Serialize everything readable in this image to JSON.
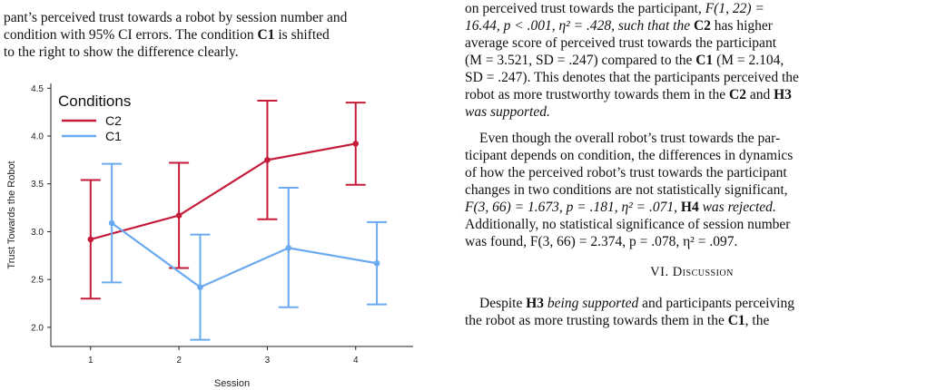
{
  "caption": {
    "lines": [
      "pant’s perceived trust towards a robot by session number and",
      "condition with 95% CI errors. The condition C1 is shifted",
      "to the right to show the difference clearly."
    ]
  },
  "chart_data": {
    "type": "line",
    "x": [
      1,
      2,
      3,
      4
    ],
    "tick_labels": [
      "1",
      "2",
      "3",
      "4"
    ],
    "xlabel": "Session",
    "ylabel": "Trust Towards the Robot",
    "ylim": [
      1.8,
      4.55
    ],
    "yticks": [
      "2.0",
      "2.5",
      "3.0",
      "3.5",
      "4.0",
      "4.5"
    ],
    "grid": false,
    "legend_title": "Conditions",
    "legend_position": "top-left",
    "series": [
      {
        "name": "C2",
        "color": "#c51b3a",
        "values": [
          2.92,
          3.17,
          3.75,
          3.92
        ],
        "ci_low": [
          2.3,
          2.62,
          3.13,
          3.49
        ],
        "ci_high": [
          3.54,
          3.72,
          4.37,
          4.35
        ],
        "x_offset": 0
      },
      {
        "name": "C1",
        "color": "#6aaaf0",
        "values": [
          3.09,
          2.42,
          2.83,
          2.67
        ],
        "ci_low": [
          2.47,
          1.87,
          2.21,
          2.24
        ],
        "ci_high": [
          3.71,
          2.97,
          3.46,
          3.1
        ],
        "x_offset": 0.24
      }
    ]
  },
  "body": {
    "paragraph1": {
      "l1a": "on perceived trust towards the participant, ",
      "l1b": "F(1, 22)  =",
      "l2a": "16.44, p  <  .001, η² = .428, such that the ",
      "l2b": "C2",
      "l2c": " has higher",
      "l3": "average score of perceived trust towards the participant",
      "l4a": "(M = 3.521, SD = .247) compared to the ",
      "l4b": "C1",
      "l4c": " (M = 2.104,",
      "l5": "SD = .247). This denotes that the participants perceived the",
      "l6a": "robot as more trustworthy towards them in the ",
      "l6b": "C2",
      "l6c": " and ",
      "l6d": "H3",
      "l7": "was supported."
    },
    "paragraph2": {
      "l1": "Even though the overall robot’s trust towards the par-",
      "l2": "ticipant depends on condition, the differences in dynamics",
      "l3": "of how the perceived robot’s trust towards the participant",
      "l4": "changes in two conditions are not statistically significant,",
      "l5a": "F(3, 66)  =  1.673, p  =  .181, η²  =  .071, ",
      "l5b": "H4",
      "l5c": " was rejected.",
      "l6": "Additionally, no statistical significance of session number",
      "l7": "was found, F(3, 66) = 2.374, p = .078, η² = .097."
    },
    "heading": {
      "number": "VI. ",
      "title": "Discussion"
    },
    "paragraph3": {
      "l1a": "Despite ",
      "l1b": "H3",
      "l1c": " being supported",
      "l1d": " and participants perceiving",
      "l2a": "the robot as more trusting towards them in the ",
      "l2b": "C1",
      "l2c": ", the"
    }
  }
}
